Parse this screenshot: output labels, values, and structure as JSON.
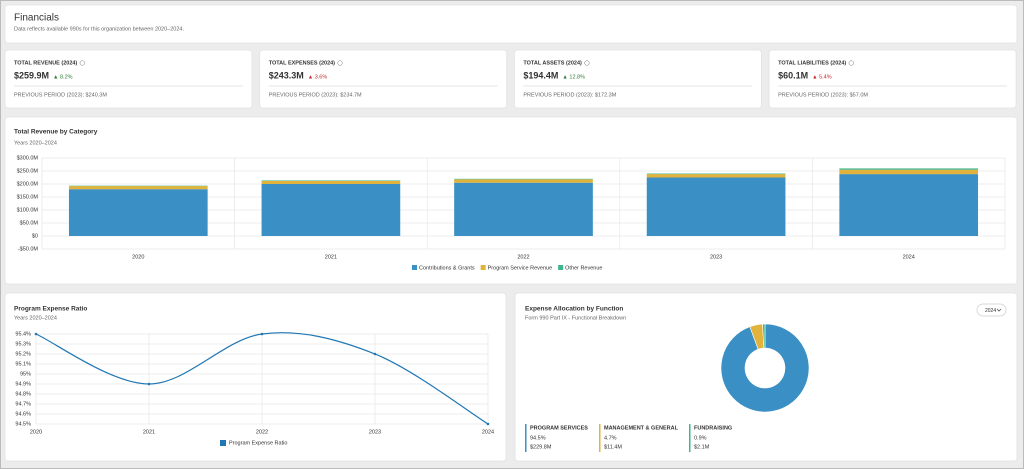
{
  "header": {
    "title": "Financials",
    "subtitle": "Data reflects available 990s for this organization between 2020–2024."
  },
  "kpis": [
    {
      "label": "TOTAL REVENUE (2024)",
      "value": "$259.9M",
      "change": "▲ 8.2%",
      "change_color": "#2e7d32",
      "previous": "PREVIOUS PERIOD (2023): $240.3M"
    },
    {
      "label": "TOTAL EXPENSES (2024)",
      "value": "$243.3M",
      "change": "▲ 3.6%",
      "change_color": "#c62828",
      "previous": "PREVIOUS PERIOD (2023): $234.7M"
    },
    {
      "label": "TOTAL ASSETS (2024)",
      "value": "$194.4M",
      "change": "▲ 12.8%",
      "change_color": "#2e7d32",
      "previous": "PREVIOUS PERIOD (2023): $172.3M"
    },
    {
      "label": "TOTAL LIABILITIES (2024)",
      "value": "$60.1M",
      "change": "▲ 5.4%",
      "change_color": "#c62828",
      "previous": "PREVIOUS PERIOD (2023): $57.0M"
    }
  ],
  "revenue_chart": {
    "type": "bar",
    "stacked": true,
    "title": "Total Revenue by Category",
    "subtitle": "Years 2020–2024",
    "categories": [
      "2020",
      "2021",
      "2022",
      "2023",
      "2024"
    ],
    "series": [
      {
        "name": "Contributions & Grants",
        "color": "#3a8fc4",
        "values": [
          180,
          200,
          205,
          225,
          238
        ]
      },
      {
        "name": "Program Service Revenue",
        "color": "#e2b33c",
        "values": [
          12,
          12,
          13,
          13,
          17
        ]
      },
      {
        "name": "Other Revenue",
        "color": "#3fb58f",
        "values": [
          1.5,
          2,
          2,
          2.3,
          4.9
        ]
      }
    ],
    "ylim": [
      -50,
      300
    ],
    "yticks": [
      {
        "value": 300,
        "label": "$300.0M"
      },
      {
        "value": 250,
        "label": "$250.0M"
      },
      {
        "value": 200,
        "label": "$200.0M"
      },
      {
        "value": 150,
        "label": "$150.0M"
      },
      {
        "value": 100,
        "label": "$100.0M"
      },
      {
        "value": 50,
        "label": "$50.0M"
      },
      {
        "value": 0,
        "label": "$0"
      },
      {
        "value": -50,
        "label": "-$50.0M"
      }
    ],
    "grid": true
  },
  "ratio_chart": {
    "type": "line",
    "title": "Program Expense Ratio",
    "subtitle": "Years 2020–2024",
    "categories": [
      "2020",
      "2021",
      "2022",
      "2023",
      "2024"
    ],
    "series": [
      {
        "name": "Program Expense Ratio",
        "color": "#1f77b4",
        "values": [
          95.4,
          94.9,
          95.4,
          95.2,
          94.5
        ]
      }
    ],
    "ylim": [
      94.5,
      95.4
    ],
    "yticks": [
      {
        "value": 95.4,
        "label": "95.4%"
      },
      {
        "value": 95.3,
        "label": "95.3%"
      },
      {
        "value": 95.2,
        "label": "95.2%"
      },
      {
        "value": 95.1,
        "label": "95.1%"
      },
      {
        "value": 95,
        "label": "95%"
      },
      {
        "value": 94.9,
        "label": "94.9%"
      },
      {
        "value": 94.8,
        "label": "94.8%"
      },
      {
        "value": 94.7,
        "label": "94.7%"
      },
      {
        "value": 94.6,
        "label": "94.6%"
      },
      {
        "value": 94.5,
        "label": "94.5%"
      }
    ],
    "grid": true
  },
  "allocation_chart": {
    "type": "donut",
    "title": "Expense Allocation by Function",
    "subtitle": "Form 990 Part IX - Functional Breakdown",
    "selector": "2024",
    "categories": [
      "PROGRAM SERVICES",
      "MANAGEMENT & GENERAL",
      "FUNDRAISING"
    ],
    "values": [
      94.5,
      4.7,
      0.9
    ],
    "value_labels": [
      "94.5%",
      "4.7%",
      "0.9%"
    ],
    "amounts": [
      "$229.8M",
      "$11.4M",
      "$2.1M"
    ],
    "colors": [
      "#3a8fc4",
      "#e2b33c",
      "#3fb58f"
    ]
  }
}
